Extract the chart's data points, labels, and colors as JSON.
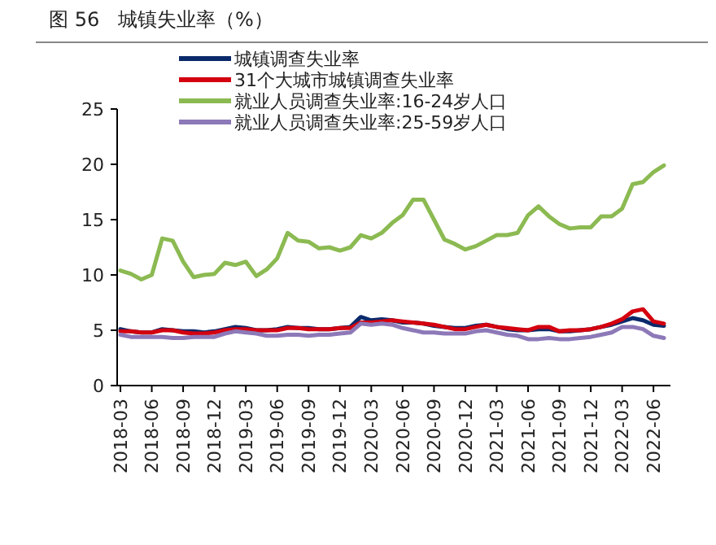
{
  "chart_data": {
    "type": "line",
    "title": "图 56   城镇失业率（%）",
    "categories": [
      "2018-03",
      null,
      null,
      "2018-06",
      null,
      null,
      "2018-09",
      null,
      null,
      "2018-12",
      null,
      null,
      "2019-03",
      null,
      null,
      "2019-06",
      null,
      null,
      "2019-09",
      null,
      null,
      "2019-12",
      null,
      null,
      "2020-03",
      null,
      null,
      "2020-06",
      null,
      null,
      "2020-09",
      null,
      null,
      "2020-12",
      null,
      null,
      "2021-03",
      null,
      null,
      "2021-06",
      null,
      null,
      "2021-09",
      null,
      null,
      "2021-12",
      null,
      null,
      "2022-03",
      null,
      null,
      "2022-06",
      null
    ],
    "series": [
      {
        "name": "城镇调查失业率",
        "color": "#0b2a6b",
        "values": [
          5.1,
          4.9,
          4.8,
          4.8,
          5.1,
          5.0,
          4.9,
          4.9,
          4.8,
          4.9,
          5.1,
          5.3,
          5.2,
          5.0,
          5.0,
          5.1,
          5.3,
          5.2,
          5.2,
          5.1,
          5.1,
          5.2,
          5.3,
          6.2,
          5.9,
          6.0,
          5.9,
          5.7,
          5.7,
          5.6,
          5.4,
          5.3,
          5.2,
          5.2,
          5.4,
          5.5,
          5.3,
          5.1,
          5.0,
          5.0,
          5.1,
          5.1,
          4.9,
          4.9,
          5.0,
          5.1,
          5.3,
          5.5,
          5.8,
          6.1,
          5.9,
          5.5,
          5.4
        ]
      },
      {
        "name": "31个大城市城镇调查失业率",
        "color": "#d4000f",
        "values": [
          4.9,
          4.9,
          4.8,
          4.8,
          5.0,
          5.0,
          4.8,
          4.7,
          4.7,
          4.8,
          5.0,
          5.1,
          5.1,
          5.0,
          5.0,
          5.0,
          5.2,
          5.2,
          5.1,
          5.1,
          5.1,
          5.2,
          5.2,
          5.7,
          5.7,
          5.8,
          5.9,
          5.8,
          5.7,
          5.6,
          5.5,
          5.3,
          5.1,
          5.1,
          5.3,
          5.5,
          5.3,
          5.2,
          5.1,
          5.0,
          5.3,
          5.3,
          4.9,
          5.0,
          5.0,
          5.1,
          5.3,
          5.6,
          6.0,
          6.7,
          6.9,
          5.8,
          5.6
        ]
      },
      {
        "name": "就业人员调查失业率:16-24岁人口",
        "color": "#8cba52",
        "values": [
          10.4,
          10.1,
          9.6,
          10.0,
          13.3,
          13.1,
          11.2,
          9.8,
          10.0,
          10.1,
          11.1,
          10.9,
          11.2,
          9.9,
          10.5,
          11.5,
          13.8,
          13.1,
          13.0,
          12.4,
          12.5,
          12.2,
          12.5,
          13.6,
          13.3,
          13.8,
          14.7,
          15.4,
          16.8,
          16.8,
          15.0,
          13.2,
          12.8,
          12.3,
          12.6,
          13.1,
          13.6,
          13.6,
          13.8,
          15.4,
          16.2,
          15.3,
          14.6,
          14.2,
          14.3,
          14.3,
          15.3,
          15.3,
          16.0,
          18.2,
          18.4,
          19.3,
          19.9
        ]
      },
      {
        "name": "就业人员调查失业率:25-59岁人口",
        "color": "#8d79b8",
        "values": [
          4.6,
          4.4,
          4.4,
          4.4,
          4.4,
          4.3,
          4.3,
          4.4,
          4.4,
          4.4,
          4.7,
          4.9,
          4.8,
          4.7,
          4.5,
          4.5,
          4.6,
          4.6,
          4.5,
          4.6,
          4.6,
          4.7,
          4.8,
          5.6,
          5.5,
          5.6,
          5.5,
          5.2,
          5.0,
          4.8,
          4.8,
          4.7,
          4.7,
          4.7,
          4.9,
          5.0,
          4.8,
          4.6,
          4.5,
          4.2,
          4.2,
          4.3,
          4.2,
          4.2,
          4.3,
          4.4,
          4.6,
          4.8,
          5.3,
          5.3,
          5.1,
          4.5,
          4.3
        ]
      }
    ],
    "ylim": [
      0,
      25
    ],
    "yticks": [
      0,
      5,
      10,
      15,
      20,
      25
    ],
    "grid": false,
    "legend": "top",
    "marker": "none",
    "line_style": "solid"
  }
}
